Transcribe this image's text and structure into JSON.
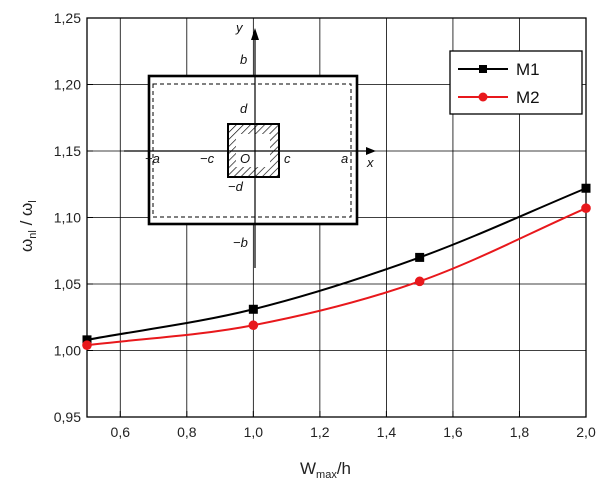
{
  "chart_data": {
    "type": "line",
    "title": "",
    "xlabel": {
      "main": "W",
      "sub": "max",
      "rest": "/h"
    },
    "ylabel": {
      "omega1": "ω",
      "sub1": "nl",
      "slash": " / ",
      "omega2": "ω",
      "sub2": "l"
    },
    "xlim": [
      0.5,
      2.0
    ],
    "ylim": [
      0.95,
      1.25
    ],
    "x_ticks": [
      0.6,
      0.8,
      1.0,
      1.2,
      1.4,
      1.6,
      1.8,
      2.0
    ],
    "x_tick_labels": [
      "0,6",
      "0,8",
      "1,0",
      "1,2",
      "1,4",
      "1,6",
      "1,8",
      "2,0"
    ],
    "y_ticks": [
      0.95,
      1.0,
      1.05,
      1.1,
      1.15,
      1.2,
      1.25
    ],
    "y_tick_labels": [
      "0,95",
      "1,00",
      "1,05",
      "1,10",
      "1,15",
      "1,20",
      "1,25"
    ],
    "grid": true,
    "legend_position": "top-right",
    "series": [
      {
        "name": "M1",
        "color": "#000000",
        "marker": "square",
        "x": [
          0.5,
          1.0,
          1.5,
          2.0
        ],
        "y": [
          1.008,
          1.031,
          1.07,
          1.122
        ]
      },
      {
        "name": "M2",
        "color": "#e8181c",
        "marker": "circle",
        "x": [
          0.5,
          1.0,
          1.5,
          2.0
        ],
        "y": [
          1.004,
          1.019,
          1.052,
          1.107
        ]
      }
    ],
    "inset": {
      "labels": {
        "y": "y",
        "x": "x",
        "b": "b",
        "neg_b": "−b",
        "d": "d",
        "neg_d": "−d",
        "neg_a": "−a",
        "a": "a",
        "neg_c": "−c",
        "c": "c",
        "origin": "O"
      }
    }
  }
}
